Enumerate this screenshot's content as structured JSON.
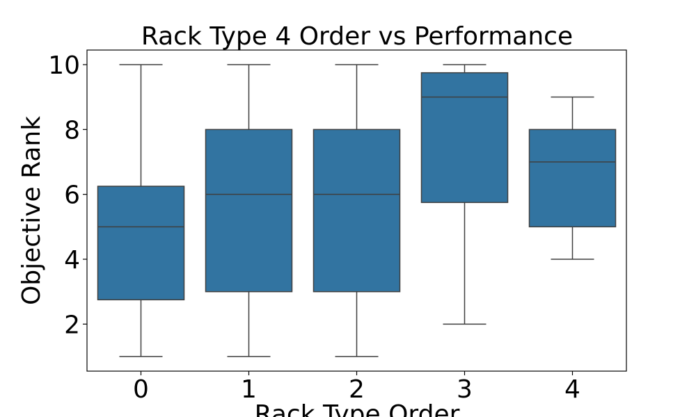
{
  "chart_data": {
    "type": "box",
    "title": "Rack Type 4 Order vs Performance",
    "xlabel": "Rack Type Order",
    "ylabel": "Objective Rank",
    "categories": [
      "0",
      "1",
      "2",
      "3",
      "4"
    ],
    "boxes": [
      {
        "category": "0",
        "whisker_low": 1,
        "q1": 2.75,
        "median": 5,
        "q3": 6.25,
        "whisker_high": 10
      },
      {
        "category": "1",
        "whisker_low": 1,
        "q1": 3,
        "median": 6,
        "q3": 8,
        "whisker_high": 10
      },
      {
        "category": "2",
        "whisker_low": 1,
        "q1": 3,
        "median": 6,
        "q3": 8,
        "whisker_high": 10
      },
      {
        "category": "3",
        "whisker_low": 2,
        "q1": 5.75,
        "median": 9,
        "q3": 9.75,
        "whisker_high": 10
      },
      {
        "category": "4",
        "whisker_low": 4,
        "q1": 5,
        "median": 7,
        "q3": 8,
        "whisker_high": 9
      }
    ],
    "yticks": [
      2,
      4,
      6,
      8,
      10
    ],
    "ytick_labels": [
      "2",
      "4",
      "6",
      "8",
      "10"
    ],
    "ylim": [
      0.55,
      10.45
    ],
    "grid": false,
    "colors": {
      "box_fill": "#3274a1",
      "line": "#3f3f3f",
      "axis": "#000000"
    }
  }
}
